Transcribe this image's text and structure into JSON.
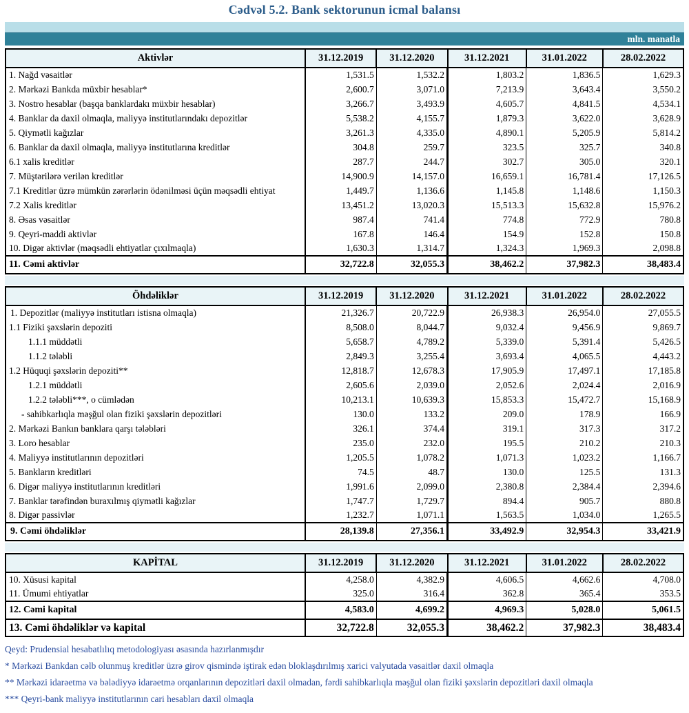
{
  "title": "Cədvəl 5.2. Bank sektorunun icmal balansı",
  "unit_label": "mln. manatla",
  "columns": [
    "31.12.2019",
    "31.12.2020",
    "31.12.2021",
    "31.01.2022",
    "28.02.2022"
  ],
  "sections": [
    {
      "id": "aktivler",
      "header": "Aktivlər",
      "rows": [
        {
          "label": "1. Nağd vəsaitlər",
          "indent": 0,
          "style": "normal",
          "values": [
            "1,531.5",
            "1,532.2",
            "1,803.2",
            "1,836.5",
            "1,629.3"
          ]
        },
        {
          "label": "2. Mərkəzi Bankda müxbir hesablar*",
          "indent": 0,
          "style": "normal",
          "values": [
            "2,600.7",
            "3,071.0",
            "7,213.9",
            "3,643.4",
            "3,550.2"
          ]
        },
        {
          "label": "3. Nostro hesablar (başqa banklardakı müxbir hesablar)",
          "indent": 0,
          "style": "normal",
          "values": [
            "3,266.7",
            "3,493.9",
            "4,605.7",
            "4,841.5",
            "4,534.1"
          ]
        },
        {
          "label": "4. Banklar da daxil olmaqla, maliyyə institutlarındakı depozitlər",
          "indent": 0,
          "style": "normal",
          "values": [
            "5,538.2",
            "4,155.7",
            "1,879.3",
            "3,622.0",
            "3,628.9"
          ]
        },
        {
          "label": "5. Qiymətli kağızlar",
          "indent": 0,
          "style": "normal",
          "values": [
            "3,261.3",
            "4,335.0",
            "4,890.1",
            "5,205.9",
            "5,814.2"
          ]
        },
        {
          "label": "6. Banklar da daxil olmaqla, maliyyə institutlarına kreditlər",
          "indent": 0,
          "style": "normal",
          "values": [
            "304.8",
            "259.7",
            "323.5",
            "325.7",
            "340.8"
          ]
        },
        {
          "label": "6.1 xalis kreditlər",
          "indent": 0,
          "style": "normal",
          "values": [
            "287.7",
            "244.7",
            "302.7",
            "305.0",
            "320.1"
          ]
        },
        {
          "label": "7. Müştərilərə verilən kreditlər",
          "indent": 0,
          "style": "normal",
          "values": [
            "14,900.9",
            "14,157.0",
            "16,659.1",
            "16,781.4",
            "17,126.5"
          ]
        },
        {
          "label": "7.1 Kreditlər üzrə mümkün zərərlərin ödənilməsi üçün məqsədli ehtiyat",
          "indent": 0,
          "style": "normal",
          "values": [
            "1,449.7",
            "1,136.6",
            "1,145.8",
            "1,148.6",
            "1,150.3"
          ]
        },
        {
          "label": "7.2 Xalis kreditlər",
          "indent": 0,
          "style": "normal",
          "values": [
            "13,451.2",
            "13,020.3",
            "15,513.3",
            "15,632.8",
            "15,976.2"
          ]
        },
        {
          "label": "8.  Əsas vəsaitlər",
          "indent": 0,
          "style": "normal",
          "values": [
            "987.4",
            "741.4",
            "774.8",
            "772.9",
            "780.8"
          ]
        },
        {
          "label": "9. Qeyri-maddi aktivlər",
          "indent": 0,
          "style": "normal",
          "values": [
            "167.8",
            "146.4",
            "154.9",
            "152.8",
            "150.8"
          ]
        },
        {
          "label": "10. Digər aktivlər (məqsədli ehtiyatlar çıxılmaqla)",
          "indent": 0,
          "style": "normal",
          "values": [
            "1,630.3",
            "1,314.7",
            "1,324.3",
            "1,969.3",
            "2,098.8"
          ]
        },
        {
          "label": "11. Cəmi aktivlər",
          "indent": 0,
          "style": "total",
          "values": [
            "32,722.8",
            "32,055.3",
            "38,462.2",
            "37,982.3",
            "38,483.4"
          ]
        }
      ]
    },
    {
      "id": "ohdelikler",
      "header": "Öhdəliklər",
      "rows": [
        {
          "label": "1. Depozitlər (maliyyə institutları istisna olmaqla)",
          "indent": 2,
          "style": "normal",
          "values": [
            "21,326.7",
            "20,722.9",
            "26,938.3",
            "26,954.0",
            "27,055.5"
          ]
        },
        {
          "label": "1.1 Fiziki şəxslərin depoziti",
          "indent": 0,
          "style": "normal",
          "values": [
            "8,508.0",
            "8,044.7",
            "9,032.4",
            "9,456.9",
            "9,869.7"
          ]
        },
        {
          "label": "1.1.1 müddətli",
          "indent": 28,
          "style": "normal",
          "values": [
            "5,658.7",
            "4,789.2",
            "5,339.0",
            "5,391.4",
            "5,426.5"
          ]
        },
        {
          "label": "1.1.2 tələbli",
          "indent": 28,
          "style": "normal",
          "values": [
            "2,849.3",
            "3,255.4",
            "3,693.4",
            "4,065.5",
            "4,443.2"
          ]
        },
        {
          "label": "1.2 Hüquqi şəxslərin depoziti**",
          "indent": 0,
          "style": "normal",
          "values": [
            "12,818.7",
            "12,678.3",
            "17,905.9",
            "17,497.1",
            "17,185.8"
          ]
        },
        {
          "label": "1.2.1 müddətli",
          "indent": 28,
          "style": "normal",
          "values": [
            "2,605.6",
            "2,039.0",
            "2,052.6",
            "2,024.4",
            "2,016.9"
          ]
        },
        {
          "label": "1.2.2 tələbli***, o cümlədən",
          "indent": 28,
          "style": "normal",
          "values": [
            "10,213.1",
            "10,639.3",
            "15,853.3",
            "15,472.7",
            "15,168.9"
          ]
        },
        {
          "label": "- sahibkarlıqla məşğul olan fiziki şəxslərin depozitləri",
          "indent": 18,
          "style": "normal",
          "values": [
            "130.0",
            "133.2",
            "209.0",
            "178.9",
            "166.9"
          ]
        },
        {
          "label": "2. Mərkəzi Bankın banklara qarşı tələbləri",
          "indent": 0,
          "style": "normal",
          "values": [
            "326.1",
            "374.4",
            "319.1",
            "317.3",
            "317.2"
          ]
        },
        {
          "label": "3. Loro hesablar",
          "indent": 0,
          "style": "normal",
          "values": [
            "235.0",
            "232.0",
            "195.5",
            "210.2",
            "210.3"
          ]
        },
        {
          "label": "4. Maliyyə institutlarının  depozitləri",
          "indent": 0,
          "style": "normal",
          "values": [
            "1,205.5",
            "1,078.2",
            "1,071.3",
            "1,023.2",
            "1,166.7"
          ]
        },
        {
          "label": "5. Bankların kreditləri",
          "indent": 0,
          "style": "normal",
          "values": [
            "74.5",
            "48.7",
            "130.0",
            "125.5",
            "131.3"
          ]
        },
        {
          "label": "6. Digər maliyyə institutlarının kreditləri",
          "indent": 0,
          "style": "normal",
          "values": [
            "1,991.6",
            "2,099.0",
            "2,380.8",
            "2,384.4",
            "2,394.6"
          ]
        },
        {
          "label": "7. Banklar tərəfindən buraxılmış qiymətli kağızlar",
          "indent": 0,
          "style": "normal",
          "values": [
            "1,747.7",
            "1,729.7",
            "894.4",
            "905.7",
            "880.8"
          ]
        },
        {
          "label": "8. Digər passivlər",
          "indent": 0,
          "style": "normal",
          "values": [
            "1,232.7",
            "1,071.1",
            "1,563.5",
            "1,034.0",
            "1,265.5"
          ]
        },
        {
          "label": "9. Cəmi öhdəliklər",
          "indent": 2,
          "style": "total",
          "values": [
            "28,139.8",
            "27,356.1",
            "33,492.9",
            "32,954.3",
            "33,421.9"
          ]
        }
      ]
    },
    {
      "id": "kapital",
      "header": "KAPİTAL",
      "rows": [
        {
          "label": "10. Xüsusi kapital",
          "indent": 0,
          "style": "normal",
          "values": [
            "4,258.0",
            "4,382.9",
            "4,606.5",
            "4,662.6",
            "4,708.0"
          ]
        },
        {
          "label": "11. Ümumi ehtiyatlar",
          "indent": 0,
          "style": "normal",
          "values": [
            "325.0",
            "316.4",
            "362.8",
            "365.4",
            "353.5"
          ]
        },
        {
          "label": "12. Cəmi kapital",
          "indent": 0,
          "style": "total",
          "values": [
            "4,583.0",
            "4,699.2",
            "4,969.3",
            "5,028.0",
            "5,061.5"
          ]
        },
        {
          "label": "13. Cəmi öhdəliklər və kapital",
          "indent": 0,
          "style": "grand",
          "values": [
            "32,722.8",
            "32,055.3",
            "38,462.2",
            "37,982.3",
            "38,483.4"
          ]
        }
      ]
    }
  ],
  "footnotes": [
    "Qeyd: Prudensial hesabatlılıq metodologiyası əsasında hazırlanmışdır",
    "* Mərkəzi Bankdan cəlb olunmuş kreditlər üzrə girov qismində iştirak edən bloklaşdırılmış xarici valyutada vəsaitlər daxil olmaqla",
    "** Mərkəzi idarəetmə və bələdiyyə idarəetmə orqanlarının depozitləri daxil olmadan, fərdi sahibkarlıqla məşğul olan fiziki şəxslərin depozitləri daxil olmaqla",
    "*** Qeyri-bank maliyyə institutlarının cari hesabları daxil olmaqla"
  ],
  "colors": {
    "title_text": "#2b5c8a",
    "band_light": "#b9dee8",
    "band_teal": "#2f8199",
    "header_row_bg": "#e9f4f7",
    "gap_band": "#e6f2f7",
    "footnote_text": "#2d4fa1",
    "border": "#000000"
  }
}
